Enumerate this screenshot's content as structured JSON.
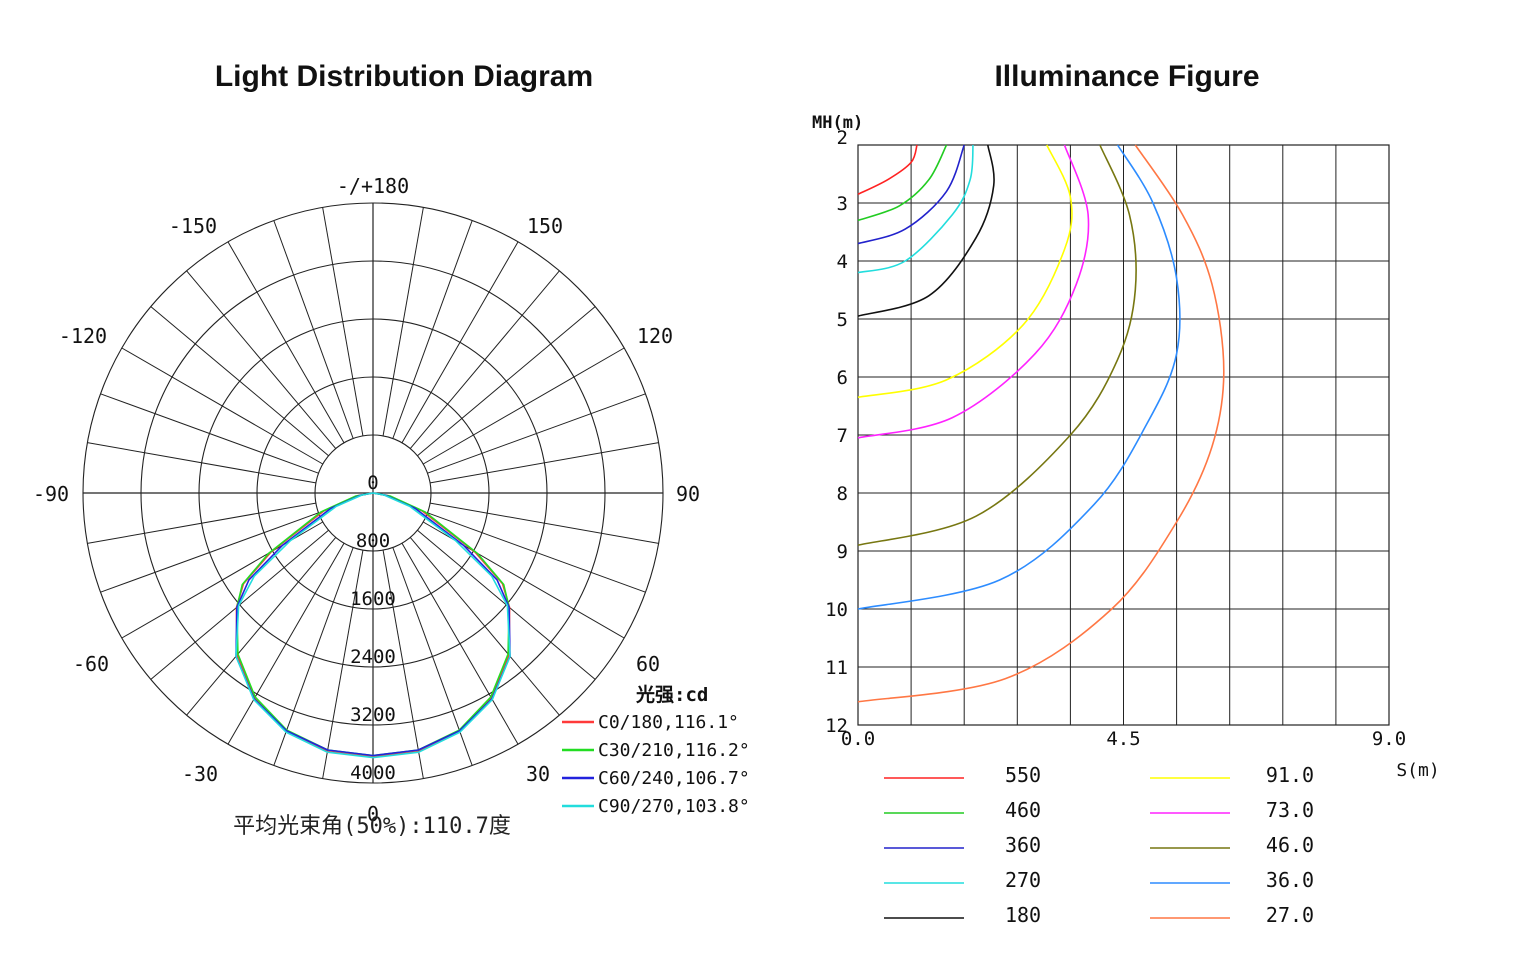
{
  "titles": {
    "polar": "Light Distribution Diagram",
    "illuminance": "Illuminance Figure"
  },
  "chart_data": [
    {
      "type": "polar",
      "title": "Light Distribution Diagram",
      "angle_labels": [
        {
          "label": "-/+180",
          "angle": 180
        },
        {
          "label": "150",
          "angle": 150
        },
        {
          "label": "120",
          "angle": 120
        },
        {
          "label": "90",
          "angle": 90
        },
        {
          "label": "60",
          "angle": 60
        },
        {
          "label": "30",
          "angle": 30
        },
        {
          "label": "0",
          "angle": 0
        },
        {
          "label": "-30",
          "angle": -30
        },
        {
          "label": "-60",
          "angle": -60
        },
        {
          "label": "-90",
          "angle": -90
        },
        {
          "label": "-120",
          "angle": -120
        },
        {
          "label": "-150",
          "angle": -150
        }
      ],
      "radial_ticks": [
        "0",
        "800",
        "1600",
        "2400",
        "3200",
        "4000"
      ],
      "r_max": 4000,
      "radial_step": 800,
      "angle_step_deg": 10,
      "unit_label": "光强:cd",
      "footer": "平均光束角(50%):110.7度",
      "series": [
        {
          "name": "C0/180,116.1°",
          "color": "#ff3a3a",
          "points": [
            [
              0,
              3640
            ],
            [
              10,
              3620
            ],
            [
              20,
              3500
            ],
            [
              30,
              3270
            ],
            [
              40,
              2920
            ],
            [
              50,
              2460
            ],
            [
              55,
              2180
            ],
            [
              60,
              1620
            ],
            [
              70,
              720
            ],
            [
              80,
              220
            ],
            [
              90,
              0
            ]
          ]
        },
        {
          "name": "C30/210,116.2°",
          "color": "#22dd22",
          "points": [
            [
              0,
              3620
            ],
            [
              10,
              3600
            ],
            [
              20,
              3480
            ],
            [
              30,
              3250
            ],
            [
              40,
              2900
            ],
            [
              50,
              2450
            ],
            [
              55,
              2200
            ],
            [
              60,
              1660
            ],
            [
              70,
              760
            ],
            [
              80,
              240
            ],
            [
              90,
              0
            ]
          ]
        },
        {
          "name": "C60/240,106.7°",
          "color": "#2222dd",
          "points": [
            [
              0,
              3620
            ],
            [
              10,
              3600
            ],
            [
              20,
              3490
            ],
            [
              30,
              3280
            ],
            [
              40,
              2940
            ],
            [
              50,
              2450
            ],
            [
              55,
              2090
            ],
            [
              60,
              1440
            ],
            [
              70,
              620
            ],
            [
              80,
              180
            ],
            [
              90,
              0
            ]
          ]
        },
        {
          "name": "C90/270,103.8°",
          "color": "#22dddd",
          "points": [
            [
              0,
              3650
            ],
            [
              10,
              3630
            ],
            [
              20,
              3510
            ],
            [
              30,
              3290
            ],
            [
              40,
              2940
            ],
            [
              50,
              2420
            ],
            [
              55,
              2000
            ],
            [
              60,
              1320
            ],
            [
              70,
              540
            ],
            [
              80,
              150
            ],
            [
              90,
              0
            ]
          ]
        }
      ]
    },
    {
      "type": "line",
      "title": "Illuminance Figure",
      "x_axis": {
        "label": "S(m)",
        "min": 0,
        "max": 9,
        "tick_labels": [
          "0.0",
          "4.5",
          "9.0"
        ]
      },
      "y_axis": {
        "label": "MH(m)",
        "min": 2,
        "max": 12,
        "reversed": true,
        "tick_labels": [
          "2",
          "3",
          "4",
          "5",
          "6",
          "7",
          "8",
          "9",
          "10",
          "11",
          "12"
        ]
      },
      "grid_cols": 10,
      "grid": true,
      "series": [
        {
          "name": "550",
          "color": "#ff2222",
          "points": [
            [
              0,
              2.85
            ],
            [
              0.5,
              2.6
            ],
            [
              0.9,
              2.3
            ],
            [
              1.0,
              2.0
            ]
          ]
        },
        {
          "name": "460",
          "color": "#22cc22",
          "points": [
            [
              0,
              3.3
            ],
            [
              0.7,
              3.05
            ],
            [
              1.2,
              2.6
            ],
            [
              1.5,
              2.0
            ]
          ]
        },
        {
          "name": "360",
          "color": "#2222cc",
          "points": [
            [
              0,
              3.7
            ],
            [
              0.8,
              3.45
            ],
            [
              1.5,
              2.8
            ],
            [
              1.8,
              2.0
            ]
          ]
        },
        {
          "name": "270",
          "color": "#22dddd",
          "points": [
            [
              0,
              4.2
            ],
            [
              0.8,
              4.0
            ],
            [
              1.6,
              3.2
            ],
            [
              1.9,
              2.6
            ],
            [
              1.95,
              2.0
            ]
          ]
        },
        {
          "name": "180",
          "color": "#111111",
          "points": [
            [
              0,
              4.95
            ],
            [
              1.2,
              4.6
            ],
            [
              2.0,
              3.6
            ],
            [
              2.3,
              2.7
            ],
            [
              2.2,
              2.0
            ]
          ]
        },
        {
          "name": "91.0",
          "color": "#ffff00",
          "points": [
            [
              0,
              6.35
            ],
            [
              1.5,
              6.05
            ],
            [
              2.8,
              5.1
            ],
            [
              3.5,
              3.8
            ],
            [
              3.6,
              2.9
            ],
            [
              3.2,
              2.0
            ]
          ]
        },
        {
          "name": "73.0",
          "color": "#ff22ff",
          "points": [
            [
              0,
              7.05
            ],
            [
              1.6,
              6.7
            ],
            [
              3.0,
              5.6
            ],
            [
              3.7,
              4.4
            ],
            [
              3.9,
              3.2
            ],
            [
              3.5,
              2.0
            ]
          ]
        },
        {
          "name": "46.0",
          "color": "#777711",
          "points": [
            [
              0,
              8.9
            ],
            [
              2.0,
              8.4
            ],
            [
              3.6,
              7.0
            ],
            [
              4.4,
              5.7
            ],
            [
              4.7,
              4.5
            ],
            [
              4.6,
              3.2
            ],
            [
              4.1,
              2.0
            ]
          ]
        },
        {
          "name": "36.0",
          "color": "#2d8cff",
          "points": [
            [
              0,
              10.0
            ],
            [
              2.4,
              9.5
            ],
            [
              4.0,
              8.2
            ],
            [
              4.9,
              6.8
            ],
            [
              5.4,
              5.6
            ],
            [
              5.4,
              4.3
            ],
            [
              5.0,
              3.0
            ],
            [
              4.4,
              2.0
            ]
          ]
        },
        {
          "name": "27.0",
          "color": "#ff7744",
          "points": [
            [
              0,
              11.6
            ],
            [
              2.5,
              11.2
            ],
            [
              4.3,
              10.0
            ],
            [
              5.4,
              8.5
            ],
            [
              6.0,
              7.2
            ],
            [
              6.2,
              5.9
            ],
            [
              6.0,
              4.4
            ],
            [
              5.5,
              3.2
            ],
            [
              4.7,
              2.0
            ]
          ]
        }
      ]
    }
  ]
}
